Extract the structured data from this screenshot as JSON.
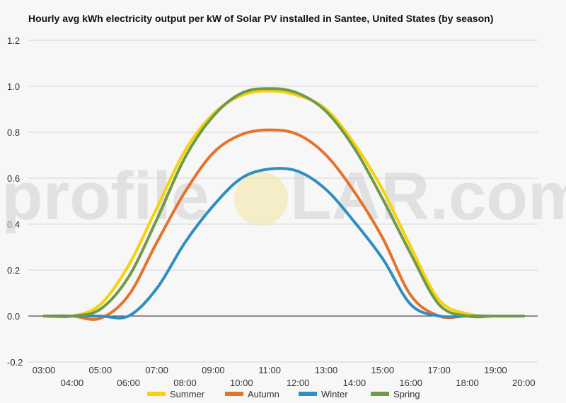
{
  "chart_data": {
    "type": "line",
    "title": "Hourly avg kWh electricity output per kW of Solar PV installed in Santee, United States (by season)",
    "xlabel": "",
    "ylabel": "",
    "ylim": [
      -0.2,
      1.2
    ],
    "yticks": [
      -0.2,
      0.0,
      0.2,
      0.4,
      0.6,
      0.8,
      1.0,
      1.2
    ],
    "ytick_labels": [
      "-0.2",
      "0.0",
      "0.2",
      "0.4",
      "0.6",
      "0.8",
      "1.0",
      "1.2"
    ],
    "x": [
      "03:00",
      "04:00",
      "05:00",
      "06:00",
      "07:00",
      "08:00",
      "09:00",
      "10:00",
      "11:00",
      "12:00",
      "13:00",
      "14:00",
      "15:00",
      "16:00",
      "17:00",
      "18:00",
      "19:00",
      "20:00"
    ],
    "grid": true,
    "legend_position": "bottom",
    "watermark": {
      "left": "profile",
      "right": "LAR.com"
    },
    "series": [
      {
        "name": "Summer",
        "color": "#f5d20a",
        "values": [
          0.0,
          0.0,
          0.05,
          0.22,
          0.47,
          0.72,
          0.88,
          0.96,
          0.98,
          0.96,
          0.9,
          0.75,
          0.55,
          0.3,
          0.07,
          0.01,
          0.0,
          0.0
        ]
      },
      {
        "name": "Autumn",
        "color": "#e5732a",
        "values": [
          0.0,
          0.0,
          -0.01,
          0.09,
          0.32,
          0.54,
          0.71,
          0.79,
          0.81,
          0.79,
          0.7,
          0.54,
          0.34,
          0.09,
          0.0,
          0.0,
          0.0,
          0.0
        ]
      },
      {
        "name": "Winter",
        "color": "#2f8fbf",
        "values": [
          0.0,
          0.0,
          0.0,
          0.0,
          0.12,
          0.32,
          0.48,
          0.6,
          0.64,
          0.63,
          0.55,
          0.41,
          0.25,
          0.05,
          0.0,
          0.0,
          0.0,
          0.0
        ]
      },
      {
        "name": "Spring",
        "color": "#6f9a4a",
        "values": [
          0.0,
          0.0,
          0.03,
          0.17,
          0.42,
          0.69,
          0.87,
          0.97,
          0.99,
          0.97,
          0.89,
          0.73,
          0.51,
          0.27,
          0.05,
          0.0,
          0.0,
          0.0
        ]
      }
    ]
  }
}
